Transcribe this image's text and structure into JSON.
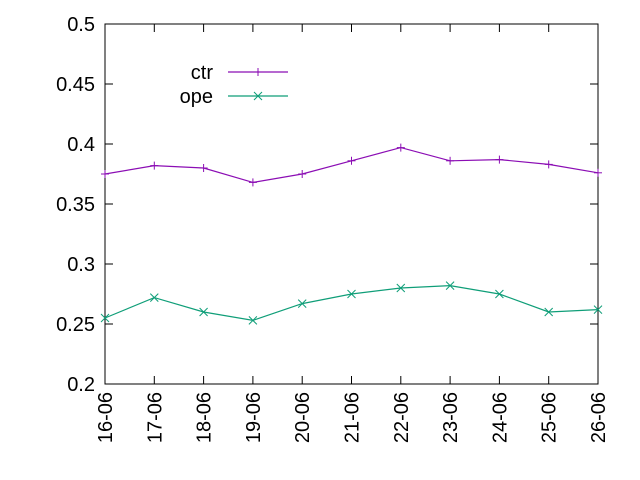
{
  "chart_data": {
    "type": "line",
    "title": "",
    "xlabel": "",
    "ylabel": "",
    "categories": [
      "16-06",
      "17-06",
      "18-06",
      "19-06",
      "20-06",
      "21-06",
      "22-06",
      "23-06",
      "24-06",
      "25-06",
      "26-06"
    ],
    "ylim": [
      0.2,
      0.5
    ],
    "yticks": [
      "0.2",
      "0.25",
      "0.3",
      "0.35",
      "0.4",
      "0.45",
      "0.5"
    ],
    "grid": false,
    "legend_position": "top-left",
    "series": [
      {
        "name": "ctr",
        "color": "#8b0db4",
        "marker": "plus",
        "values": [
          0.375,
          0.382,
          0.38,
          0.368,
          0.375,
          0.386,
          0.397,
          0.386,
          0.387,
          0.383,
          0.376
        ]
      },
      {
        "name": "ope",
        "color": "#0f9e78",
        "marker": "cross",
        "values": [
          0.255,
          0.272,
          0.26,
          0.253,
          0.267,
          0.275,
          0.28,
          0.282,
          0.275,
          0.26,
          0.262
        ]
      }
    ]
  }
}
